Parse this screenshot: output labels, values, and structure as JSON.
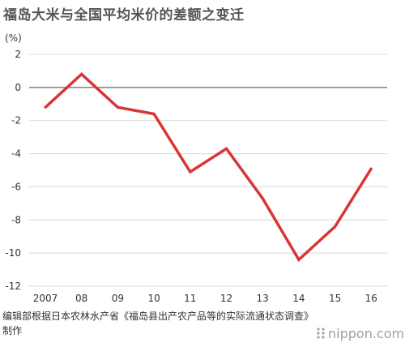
{
  "header": {
    "title": "福岛大米与全国平均米价的差额之变迁",
    "unit": "(%)"
  },
  "footer": {
    "source": "编辑部根据日本农林水产省《福岛县出产农产品等的实际流通状态调查》制作",
    "logo_text": "nippon.com"
  },
  "colors": {
    "line": "#d93535",
    "zero_line": "#666666",
    "grid": "#d8d8d8",
    "axis_text": "#333333"
  },
  "chart_data": {
    "type": "line",
    "title": "福岛大米与全国平均米价的差额之变迁",
    "ylabel": "(%)",
    "xlabel": "",
    "categories": [
      "2007",
      "08",
      "09",
      "10",
      "11",
      "12",
      "13",
      "14",
      "15",
      "16"
    ],
    "values": [
      -1.2,
      0.8,
      -1.2,
      -1.6,
      -5.1,
      -3.7,
      -6.7,
      -10.4,
      -8.4,
      -4.9
    ],
    "ylim": [
      -12,
      2
    ],
    "yticks": [
      2,
      0,
      -2,
      -4,
      -6,
      -8,
      -10,
      -12
    ],
    "grid": true,
    "legend": "none"
  }
}
